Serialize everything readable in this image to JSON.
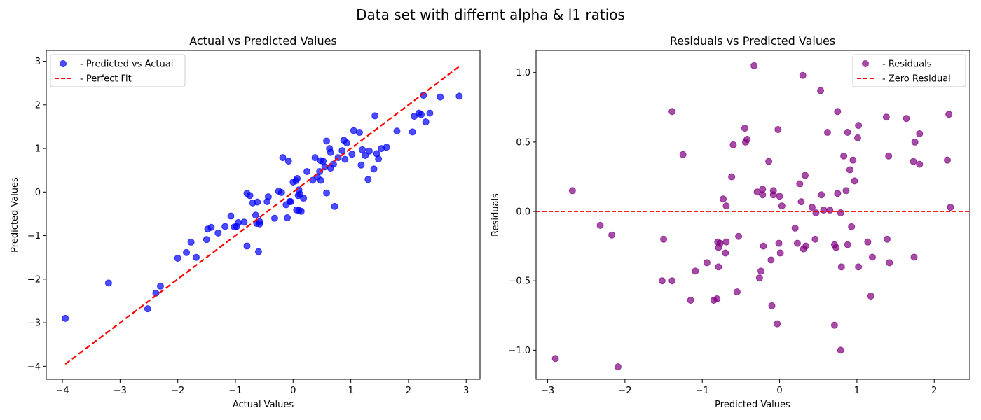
{
  "figure": {
    "suptitle": "Data set with differnt alpha & l1 ratios"
  },
  "chart_data": [
    {
      "type": "scatter",
      "title": "Actual vs Predicted Values",
      "xlabel": "Actual Values",
      "ylabel": "Predicted Values",
      "xlim": [
        -4.28,
        3.24
      ],
      "ylim": [
        -4.3,
        3.25
      ],
      "xticks": [
        -4,
        -3,
        -2,
        -1,
        0,
        1,
        2,
        3
      ],
      "yticks": [
        -4,
        -3,
        -2,
        -1,
        0,
        1,
        2,
        3
      ],
      "xtick_labels": [
        "−4",
        "−3",
        "−2",
        "−1",
        "0",
        "1",
        "2",
        "3"
      ],
      "ytick_labels": [
        "−4",
        "−3",
        "−2",
        "−1",
        "0",
        "1",
        "2",
        "3"
      ],
      "grid": false,
      "legend_position": "top-left",
      "series": [
        {
          "name": "- Predicted vs Actual",
          "kind": "scatter",
          "color": "#0000ff",
          "alpha": 0.7,
          "points": [
            [
              -3.95,
              -2.9
            ],
            [
              -3.2,
              -2.09
            ],
            [
              -2.52,
              -2.68
            ],
            [
              -2.38,
              -2.32
            ],
            [
              -2.3,
              -2.16
            ],
            [
              -2.0,
              -1.52
            ],
            [
              -1.85,
              -1.39
            ],
            [
              -1.77,
              -1.15
            ],
            [
              -1.68,
              -1.5
            ],
            [
              -1.5,
              -1.09
            ],
            [
              -1.48,
              -0.85
            ],
            [
              -1.42,
              -0.81
            ],
            [
              -1.3,
              -0.94
            ],
            [
              -1.18,
              -0.79
            ],
            [
              -1.08,
              -0.55
            ],
            [
              -1.02,
              -0.8
            ],
            [
              -0.98,
              -0.79
            ],
            [
              -0.95,
              -0.7
            ],
            [
              -0.85,
              -0.69
            ],
            [
              -0.8,
              -1.24
            ],
            [
              -0.8,
              -0.03
            ],
            [
              -0.75,
              -0.08
            ],
            [
              -0.7,
              -0.25
            ],
            [
              -0.65,
              -0.53
            ],
            [
              -0.62,
              -0.23
            ],
            [
              -0.6,
              -1.37
            ],
            [
              -0.58,
              -0.73
            ],
            [
              -0.58,
              -0.68
            ],
            [
              -0.45,
              -0.22
            ],
            [
              -0.43,
              -0.11
            ],
            [
              -0.32,
              -0.6
            ],
            [
              -0.25,
              0.02
            ],
            [
              -0.2,
              -0.01
            ],
            [
              -0.18,
              0.79
            ],
            [
              -0.12,
              -0.29
            ],
            [
              -0.1,
              -0.59
            ],
            [
              -0.08,
              0.71
            ],
            [
              -0.06,
              -0.22
            ],
            [
              -0.04,
              -0.22
            ],
            [
              0.0,
              0.23
            ],
            [
              0.05,
              0.26
            ],
            [
              0.06,
              -0.41
            ],
            [
              0.07,
              0.31
            ],
            [
              0.09,
              -0.08
            ],
            [
              0.1,
              -0.42
            ],
            [
              0.1,
              0.05
            ],
            [
              0.12,
              -0.05
            ],
            [
              0.14,
              -0.44
            ],
            [
              0.18,
              -0.14
            ],
            [
              0.24,
              0.47
            ],
            [
              0.34,
              0.27
            ],
            [
              0.38,
              0.79
            ],
            [
              0.42,
              0.35
            ],
            [
              0.46,
              0.47
            ],
            [
              0.48,
              0.27
            ],
            [
              0.48,
              0.72
            ],
            [
              0.52,
              0.71
            ],
            [
              0.55,
              0.58
            ],
            [
              0.58,
              1.17
            ],
            [
              0.58,
              -0.02
            ],
            [
              0.63,
              1.0
            ],
            [
              0.65,
              0.91
            ],
            [
              0.65,
              0.55
            ],
            [
              0.7,
              0.64
            ],
            [
              0.72,
              -0.33
            ],
            [
              0.78,
              0.79
            ],
            [
              0.85,
              0.95
            ],
            [
              0.88,
              1.19
            ],
            [
              0.9,
              0.75
            ],
            [
              0.93,
              1.13
            ],
            [
              1.02,
              0.87
            ],
            [
              1.05,
              1.41
            ],
            [
              1.15,
              1.37
            ],
            [
              1.18,
              0.62
            ],
            [
              1.2,
              0.97
            ],
            [
              1.25,
              0.84
            ],
            [
              1.3,
              0.29
            ],
            [
              1.32,
              0.94
            ],
            [
              1.4,
              0.53
            ],
            [
              1.42,
              1.75
            ],
            [
              1.45,
              0.88
            ],
            [
              1.48,
              0.76
            ],
            [
              1.53,
              1.0
            ],
            [
              1.62,
              1.03
            ],
            [
              1.8,
              1.4
            ],
            [
              2.07,
              1.38
            ],
            [
              2.1,
              1.74
            ],
            [
              2.18,
              1.81
            ],
            [
              2.22,
              1.78
            ],
            [
              2.26,
              2.22
            ],
            [
              2.3,
              1.61
            ],
            [
              2.37,
              1.81
            ],
            [
              2.55,
              2.18
            ],
            [
              2.88,
              2.2
            ],
            [
              -0.63,
              -0.72
            ]
          ]
        },
        {
          "name": "- Perfect Fit",
          "kind": "line",
          "style": "dashed",
          "color": "#ff0000",
          "points": [
            [
              -3.95,
              -3.95
            ],
            [
              2.88,
              2.88
            ]
          ]
        }
      ]
    },
    {
      "type": "scatter",
      "title": "Residuals vs Predicted Values",
      "xlabel": "Predicted Values",
      "ylabel": "Residuals",
      "xlim": [
        -3.15,
        2.46
      ],
      "ylim": [
        -1.21,
        1.16
      ],
      "xticks": [
        -3,
        -2,
        -1,
        0,
        1,
        2
      ],
      "yticks": [
        -1.0,
        -0.5,
        0.0,
        0.5,
        1.0
      ],
      "xtick_labels": [
        "−3",
        "−2",
        "−1",
        "0",
        "1",
        "2"
      ],
      "ytick_labels": [
        "−1.0",
        "−0.5",
        "0.0",
        "0.5",
        "1.0"
      ],
      "grid": false,
      "legend_position": "top-right",
      "series": [
        {
          "name": "- Residuals",
          "kind": "scatter",
          "color": "#800080",
          "alpha": 0.7,
          "points": [
            [
              -2.9,
              -1.06
            ],
            [
              -2.68,
              0.15
            ],
            [
              -2.32,
              -0.1
            ],
            [
              -2.17,
              -0.17
            ],
            [
              -2.09,
              -1.12
            ],
            [
              -1.52,
              -0.5
            ],
            [
              -1.5,
              -0.2
            ],
            [
              -1.39,
              0.72
            ],
            [
              -1.39,
              -0.5
            ],
            [
              -1.25,
              0.41
            ],
            [
              -1.15,
              -0.64
            ],
            [
              -1.09,
              -0.43
            ],
            [
              -0.94,
              -0.37
            ],
            [
              -0.85,
              -0.64
            ],
            [
              -0.81,
              -0.63
            ],
            [
              -0.8,
              -0.22
            ],
            [
              -0.79,
              -0.26
            ],
            [
              -0.79,
              -0.4
            ],
            [
              -0.77,
              -0.23
            ],
            [
              -0.73,
              0.09
            ],
            [
              -0.7,
              -0.3
            ],
            [
              -0.69,
              0.04
            ],
            [
              -0.69,
              -0.22
            ],
            [
              -0.62,
              0.25
            ],
            [
              -0.6,
              0.48
            ],
            [
              -0.55,
              -0.58
            ],
            [
              -0.53,
              -0.18
            ],
            [
              -0.45,
              0.6
            ],
            [
              -0.44,
              0.5
            ],
            [
              -0.42,
              0.52
            ],
            [
              -0.33,
              1.05
            ],
            [
              -0.29,
              0.14
            ],
            [
              -0.26,
              -0.48
            ],
            [
              -0.24,
              -0.43
            ],
            [
              -0.22,
              0.12
            ],
            [
              -0.22,
              0.16
            ],
            [
              -0.21,
              -0.25
            ],
            [
              -0.14,
              0.36
            ],
            [
              -0.11,
              -0.35
            ],
            [
              -0.1,
              -0.68
            ],
            [
              -0.08,
              0.15
            ],
            [
              -0.08,
              0.12
            ],
            [
              -0.03,
              -0.81
            ],
            [
              -0.02,
              0.59
            ],
            [
              -0.01,
              -0.23
            ],
            [
              0.0,
              0.11
            ],
            [
              0.01,
              -0.3
            ],
            [
              0.03,
              0.04
            ],
            [
              0.2,
              -0.12
            ],
            [
              0.23,
              -0.23
            ],
            [
              0.26,
              0.2
            ],
            [
              0.28,
              0.07
            ],
            [
              0.3,
              0.98
            ],
            [
              0.31,
              -0.27
            ],
            [
              0.33,
              0.26
            ],
            [
              0.34,
              -0.25
            ],
            [
              0.42,
              0.03
            ],
            [
              0.46,
              -0.2
            ],
            [
              0.47,
              -0.01
            ],
            [
              0.53,
              0.87
            ],
            [
              0.54,
              0.12
            ],
            [
              0.57,
              0.01
            ],
            [
              0.62,
              0.57
            ],
            [
              0.65,
              0.01
            ],
            [
              0.71,
              -0.24
            ],
            [
              0.71,
              -0.82
            ],
            [
              0.73,
              -0.26
            ],
            [
              0.75,
              0.72
            ],
            [
              0.75,
              0.13
            ],
            [
              0.79,
              -0.01
            ],
            [
              0.79,
              -1.0
            ],
            [
              0.8,
              -0.4
            ],
            [
              0.83,
              0.4
            ],
            [
              0.86,
              0.15
            ],
            [
              0.88,
              0.57
            ],
            [
              0.88,
              -0.24
            ],
            [
              0.91,
              0.3
            ],
            [
              0.93,
              -0.11
            ],
            [
              0.95,
              0.37
            ],
            [
              0.97,
              0.22
            ],
            [
              1.01,
              0.53
            ],
            [
              1.02,
              0.62
            ],
            [
              1.02,
              -0.4
            ],
            [
              1.14,
              -0.22
            ],
            [
              1.18,
              -0.61
            ],
            [
              1.2,
              -0.33
            ],
            [
              1.38,
              0.68
            ],
            [
              1.39,
              -0.2
            ],
            [
              1.41,
              0.4
            ],
            [
              1.42,
              -0.37
            ],
            [
              1.64,
              0.67
            ],
            [
              1.73,
              0.36
            ],
            [
              1.74,
              -0.33
            ],
            [
              1.75,
              0.5
            ],
            [
              1.81,
              0.34
            ],
            [
              1.81,
              0.56
            ],
            [
              2.17,
              0.37
            ],
            [
              2.19,
              0.7
            ],
            [
              2.21,
              0.03
            ]
          ]
        },
        {
          "name": "- Zero Residual",
          "kind": "hline",
          "style": "dashed",
          "color": "#ff0000",
          "y": 0
        }
      ]
    }
  ]
}
